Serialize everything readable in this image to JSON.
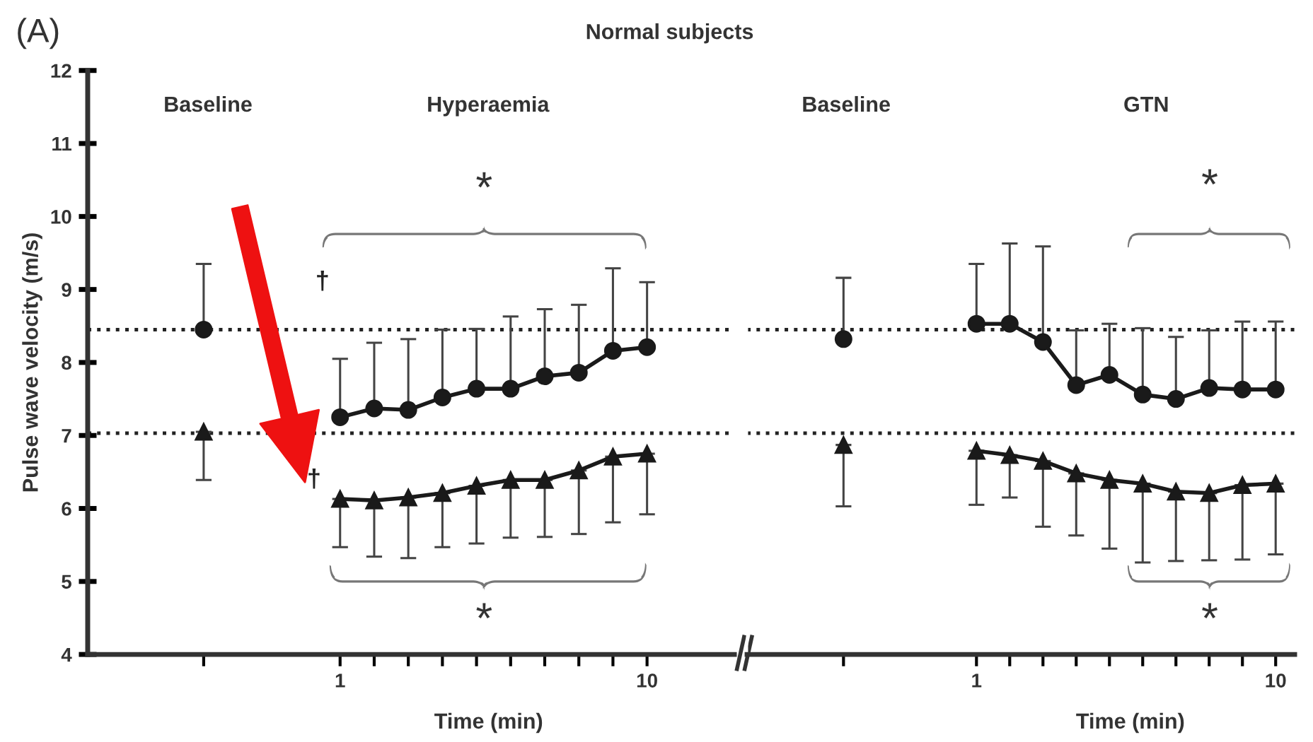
{
  "chart_data": [
    {
      "type": "line",
      "ylabel": "Pulse wave velocity (m/s)",
      "xlabel": "Time (min)",
      "categories": [
        null,
        null,
        null,
        null,
        "1",
        null,
        null,
        null,
        null,
        null,
        null,
        null,
        null,
        "10"
      ],
      "ylim": [
        4,
        12
      ],
      "yticks": [
        4,
        5,
        6,
        7,
        8,
        9,
        10,
        11,
        12
      ],
      "grid": false,
      "line_style": "solid",
      "annotations": [
        "(A)",
        "Normal subjects",
        "Baseline",
        "Hyperaemia",
        "*",
        "*",
        "†",
        "†"
      ],
      "ref_lines": [
        {
          "axis": "y",
          "value": 8.45,
          "line_style": "dotted",
          "color": "#222222"
        },
        {
          "axis": "y",
          "value": 7.03,
          "line_style": "dotted",
          "color": "#222222"
        }
      ],
      "series": [
        {
          "color": "#1a1a1a",
          "marker": "circle",
          "values": [
            8.45,
            null,
            null,
            null,
            7.25,
            7.37,
            7.35,
            7.52,
            7.64,
            7.64,
            7.81,
            7.86,
            8.16,
            8.21
          ],
          "errors": [
            [
              8.45,
              9.35
            ],
            null,
            null,
            null,
            [
              7.25,
              8.05
            ],
            [
              7.37,
              8.27
            ],
            [
              7.35,
              8.32
            ],
            [
              7.52,
              8.45
            ],
            [
              7.64,
              8.46
            ],
            [
              7.64,
              8.63
            ],
            [
              7.81,
              8.73
            ],
            [
              7.86,
              8.79
            ],
            [
              8.16,
              9.29
            ],
            [
              8.21,
              9.1
            ]
          ]
        },
        {
          "color": "#1a1a1a",
          "marker": "triangle",
          "values": [
            7.05,
            null,
            null,
            null,
            6.13,
            6.11,
            6.15,
            6.21,
            6.31,
            6.39,
            6.39,
            6.52,
            6.71,
            6.75
          ],
          "errors": [
            [
              6.39,
              7.05
            ],
            null,
            null,
            null,
            [
              5.47,
              6.13
            ],
            [
              5.34,
              6.11
            ],
            [
              5.32,
              6.15
            ],
            [
              5.47,
              6.21
            ],
            [
              5.52,
              6.31
            ],
            [
              5.6,
              6.39
            ],
            [
              5.61,
              6.39
            ],
            [
              5.65,
              6.52
            ],
            [
              5.81,
              6.71
            ],
            [
              5.92,
              6.75
            ]
          ]
        }
      ]
    },
    {
      "type": "line",
      "xlabel": "Time (min)",
      "categories": [
        null,
        null,
        null,
        null,
        "1",
        null,
        null,
        null,
        null,
        null,
        null,
        null,
        null,
        "10"
      ],
      "ylim": [
        4,
        12
      ],
      "tick_labels": "x",
      "grid": false,
      "line_style": "solid",
      "annotations": [
        "Baseline",
        "GTN",
        "*",
        "*"
      ],
      "ref_lines": [
        {
          "axis": "y",
          "value": 8.45,
          "line_style": "dotted",
          "color": "#222222"
        },
        {
          "axis": "y",
          "value": 7.03,
          "line_style": "dotted",
          "color": "#222222"
        }
      ],
      "series": [
        {
          "color": "#1a1a1a",
          "marker": "circle",
          "values": [
            8.32,
            null,
            null,
            null,
            8.53,
            8.53,
            8.28,
            7.69,
            7.83,
            7.56,
            7.5,
            7.65,
            7.63,
            7.63
          ],
          "errors": [
            [
              8.32,
              9.16
            ],
            null,
            null,
            null,
            [
              8.53,
              9.35
            ],
            [
              8.53,
              9.63
            ],
            [
              8.28,
              9.59
            ],
            [
              7.69,
              8.44
            ],
            [
              7.83,
              8.53
            ],
            [
              7.56,
              8.47
            ],
            [
              7.5,
              8.35
            ],
            [
              7.65,
              8.44
            ],
            [
              7.63,
              8.56
            ],
            [
              7.63,
              8.56
            ]
          ]
        },
        {
          "color": "#1a1a1a",
          "marker": "triangle",
          "values": [
            6.87,
            null,
            null,
            null,
            6.79,
            6.73,
            6.65,
            6.48,
            6.39,
            6.34,
            6.23,
            6.21,
            6.32,
            6.34
          ],
          "errors": [
            [
              6.03,
              6.87
            ],
            null,
            null,
            null,
            [
              6.05,
              6.79
            ],
            [
              6.15,
              6.73
            ],
            [
              5.75,
              6.65
            ],
            [
              5.63,
              6.48
            ],
            [
              5.45,
              6.39
            ],
            [
              5.26,
              6.34
            ],
            [
              5.28,
              6.23
            ],
            [
              5.29,
              6.21
            ],
            [
              5.3,
              6.32
            ],
            [
              5.37,
              6.34
            ]
          ]
        }
      ]
    }
  ]
}
